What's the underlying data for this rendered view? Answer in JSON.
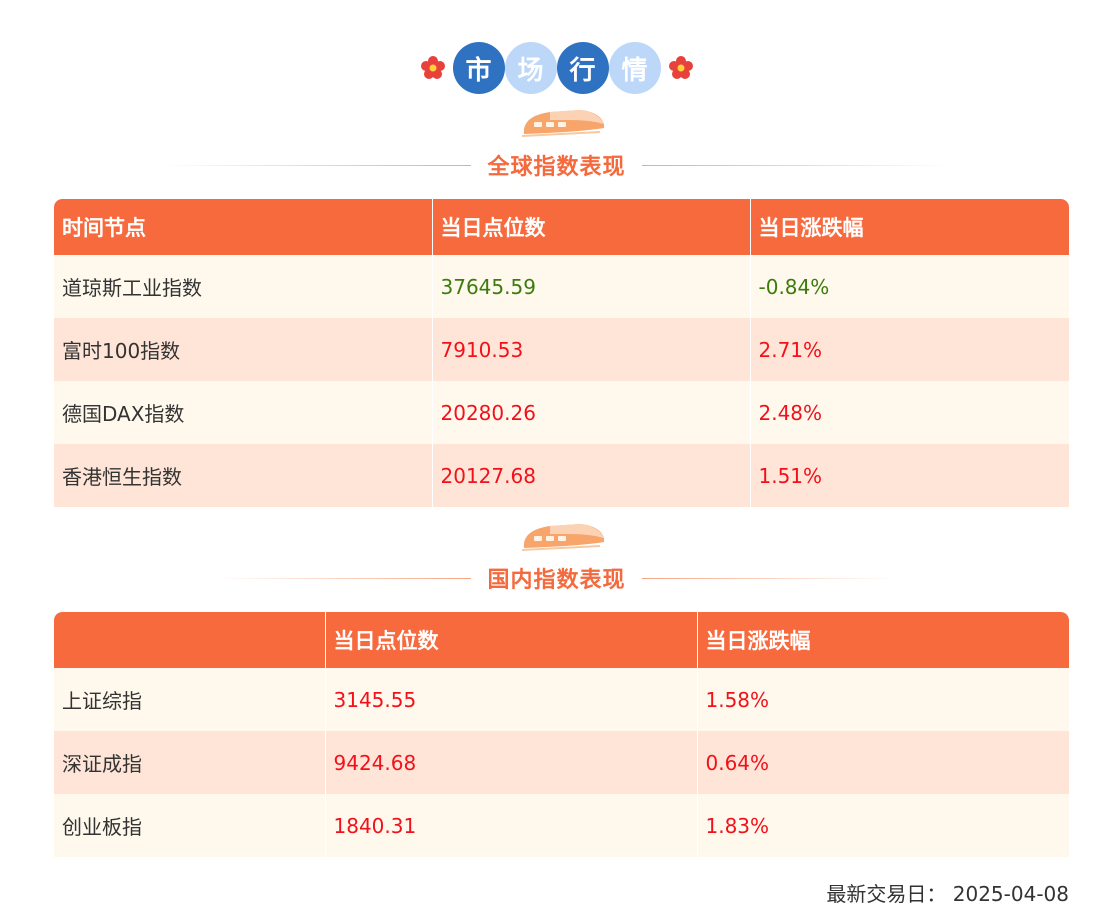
{
  "header": {
    "title_chars": [
      "市",
      "场",
      "行",
      "情"
    ]
  },
  "global": {
    "title": "全球指数表现",
    "columns": [
      "时间节点",
      "当日点位数",
      "当日涨跌幅"
    ],
    "rows": [
      {
        "name": "道琼斯工业指数",
        "points": "37645.59",
        "change": "-0.84%",
        "trend": "down"
      },
      {
        "name": "富时100指数",
        "points": "7910.53",
        "change": "2.71%",
        "trend": "up"
      },
      {
        "name": "德国DAX指数",
        "points": "20280.26",
        "change": "2.48%",
        "trend": "up"
      },
      {
        "name": "香港恒生指数",
        "points": "20127.68",
        "change": "1.51%",
        "trend": "up"
      }
    ]
  },
  "domestic": {
    "title": "国内指数表现",
    "columns": [
      "",
      "当日点位数",
      "当日涨跌幅"
    ],
    "rows": [
      {
        "name": "上证综指",
        "points": "3145.55",
        "change": "1.58%",
        "trend": "up"
      },
      {
        "name": "深证成指",
        "points": "9424.68",
        "change": "0.64%",
        "trend": "up"
      },
      {
        "name": "创业板指",
        "points": "1840.31",
        "change": "1.83%",
        "trend": "up"
      }
    ]
  },
  "footer": {
    "latest_trade_date": "最新交易日：  2025-04-08"
  },
  "colors": {
    "accent": "#f76a3e",
    "title_dark": "#2f72c2",
    "title_light": "#bcd7f7",
    "up": "#f2111a",
    "down": "#3c7c0c",
    "row_odd": "#fff8ed",
    "row_even": "#fee5d7"
  }
}
